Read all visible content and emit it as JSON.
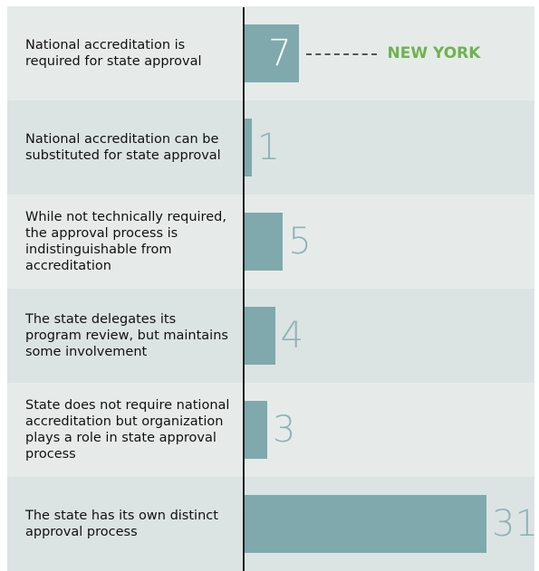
{
  "chart_data": {
    "type": "barh",
    "categories": [
      "National accreditation is required for state approval",
      "National accreditation can be substituted for state approval",
      "While not technically required, the approval process is indistinguishable from accreditation",
      "The state delegates its program review, but maintains some involvement",
      "State does not require national accreditation but organization plays a role in state approval process",
      "The state has its own distinct approval process"
    ],
    "values": [
      7,
      1,
      5,
      4,
      3,
      31
    ],
    "color": "#7fa9ad",
    "annotation": {
      "text": "NEW YORK",
      "category_index": 0,
      "color": "#6fb34f"
    }
  }
}
